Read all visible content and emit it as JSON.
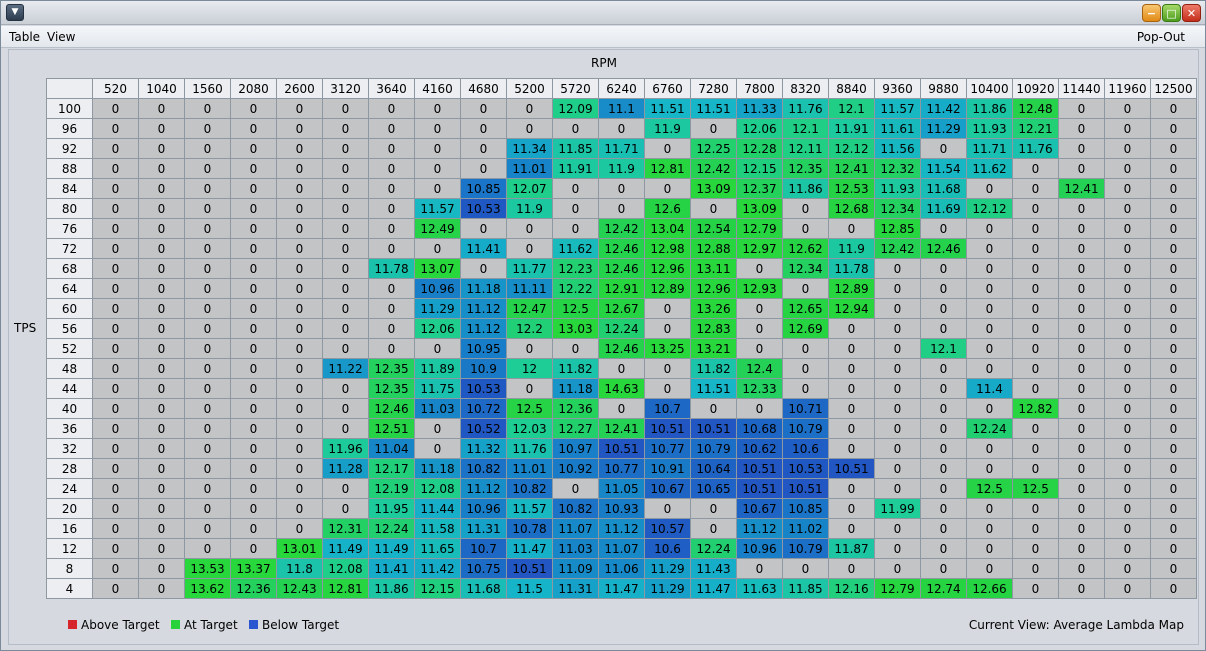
{
  "window": {
    "system_menu_icon": "chevron-down-icon"
  },
  "menu": {
    "items": [
      "Table",
      "View"
    ],
    "popout": "Pop-Out"
  },
  "table": {
    "x_axis_label": "RPM",
    "y_axis_label": "TPS",
    "rpm": [
      "520",
      "1040",
      "1560",
      "2080",
      "2600",
      "3120",
      "3640",
      "4160",
      "4680",
      "5200",
      "5720",
      "6240",
      "6760",
      "7280",
      "7800",
      "8320",
      "8840",
      "9360",
      "9880",
      "10400",
      "10920",
      "11440",
      "11960",
      "12500"
    ],
    "tps": [
      "100",
      "96",
      "92",
      "88",
      "84",
      "80",
      "76",
      "72",
      "68",
      "64",
      "60",
      "56",
      "52",
      "48",
      "44",
      "40",
      "36",
      "32",
      "28",
      "24",
      "20",
      "16",
      "12",
      "8",
      "4"
    ],
    "rows": [
      [
        "0",
        "0",
        "0",
        "0",
        "0",
        "0",
        "0",
        "0",
        "0",
        "0",
        "12.09",
        "11.1",
        "11.51",
        "11.51",
        "11.33",
        "11.76",
        "12.1",
        "11.57",
        "11.42",
        "11.86",
        "12.48",
        "0",
        "0",
        "0"
      ],
      [
        "0",
        "0",
        "0",
        "0",
        "0",
        "0",
        "0",
        "0",
        "0",
        "0",
        "0",
        "0",
        "11.9",
        "0",
        "12.06",
        "12.1",
        "11.91",
        "11.61",
        "11.29",
        "11.93",
        "12.21",
        "0",
        "0",
        "0"
      ],
      [
        "0",
        "0",
        "0",
        "0",
        "0",
        "0",
        "0",
        "0",
        "0",
        "11.34",
        "11.85",
        "11.71",
        "0",
        "12.25",
        "12.28",
        "12.11",
        "12.12",
        "11.56",
        "0",
        "11.71",
        "11.76",
        "0",
        "0",
        "0"
      ],
      [
        "0",
        "0",
        "0",
        "0",
        "0",
        "0",
        "0",
        "0",
        "0",
        "11.01",
        "11.91",
        "11.9",
        "12.81",
        "12.42",
        "12.15",
        "12.35",
        "12.41",
        "12.32",
        "11.54",
        "11.62",
        "0",
        "0",
        "0",
        "0"
      ],
      [
        "0",
        "0",
        "0",
        "0",
        "0",
        "0",
        "0",
        "0",
        "10.85",
        "12.07",
        "0",
        "0",
        "0",
        "13.09",
        "12.37",
        "11.86",
        "12.53",
        "11.93",
        "11.68",
        "0",
        "0",
        "12.41",
        "0",
        "0"
      ],
      [
        "0",
        "0",
        "0",
        "0",
        "0",
        "0",
        "0",
        "11.57",
        "10.53",
        "11.9",
        "0",
        "0",
        "12.6",
        "0",
        "13.09",
        "0",
        "12.68",
        "12.34",
        "11.69",
        "12.12",
        "0",
        "0",
        "0",
        "0"
      ],
      [
        "0",
        "0",
        "0",
        "0",
        "0",
        "0",
        "0",
        "12.49",
        "0",
        "0",
        "0",
        "12.42",
        "13.04",
        "12.54",
        "12.79",
        "0",
        "0",
        "12.85",
        "0",
        "0",
        "0",
        "0",
        "0",
        "0"
      ],
      [
        "0",
        "0",
        "0",
        "0",
        "0",
        "0",
        "0",
        "0",
        "11.41",
        "0",
        "11.62",
        "12.46",
        "12.98",
        "12.88",
        "12.97",
        "12.62",
        "11.9",
        "12.42",
        "12.46",
        "0",
        "0",
        "0",
        "0",
        "0"
      ],
      [
        "0",
        "0",
        "0",
        "0",
        "0",
        "0",
        "11.78",
        "13.07",
        "0",
        "11.77",
        "12.23",
        "12.46",
        "12.96",
        "13.11",
        "0",
        "12.34",
        "11.78",
        "0",
        "0",
        "0",
        "0",
        "0",
        "0",
        "0"
      ],
      [
        "0",
        "0",
        "0",
        "0",
        "0",
        "0",
        "0",
        "10.96",
        "11.18",
        "11.11",
        "12.22",
        "12.91",
        "12.89",
        "12.96",
        "12.93",
        "0",
        "12.89",
        "0",
        "0",
        "0",
        "0",
        "0",
        "0",
        "0"
      ],
      [
        "0",
        "0",
        "0",
        "0",
        "0",
        "0",
        "0",
        "11.29",
        "11.12",
        "12.47",
        "12.5",
        "12.67",
        "0",
        "13.26",
        "0",
        "12.65",
        "12.94",
        "0",
        "0",
        "0",
        "0",
        "0",
        "0",
        "0"
      ],
      [
        "0",
        "0",
        "0",
        "0",
        "0",
        "0",
        "0",
        "12.06",
        "11.12",
        "12.2",
        "13.03",
        "12.24",
        "0",
        "12.83",
        "0",
        "12.69",
        "0",
        "0",
        "0",
        "0",
        "0",
        "0",
        "0",
        "0"
      ],
      [
        "0",
        "0",
        "0",
        "0",
        "0",
        "0",
        "0",
        "0",
        "10.95",
        "0",
        "0",
        "12.46",
        "13.25",
        "13.21",
        "0",
        "0",
        "0",
        "0",
        "12.1",
        "0",
        "0",
        "0",
        "0",
        "0"
      ],
      [
        "0",
        "0",
        "0",
        "0",
        "0",
        "11.22",
        "12.35",
        "11.89",
        "10.9",
        "12",
        "11.82",
        "0",
        "0",
        "11.82",
        "12.4",
        "0",
        "0",
        "0",
        "0",
        "0",
        "0",
        "0",
        "0",
        "0"
      ],
      [
        "0",
        "0",
        "0",
        "0",
        "0",
        "0",
        "12.35",
        "11.75",
        "10.53",
        "0",
        "11.18",
        "14.63",
        "0",
        "11.51",
        "12.33",
        "0",
        "0",
        "0",
        "0",
        "11.4",
        "0",
        "0",
        "0",
        "0"
      ],
      [
        "0",
        "0",
        "0",
        "0",
        "0",
        "0",
        "12.46",
        "11.03",
        "10.72",
        "12.5",
        "12.36",
        "0",
        "10.7",
        "0",
        "0",
        "10.71",
        "0",
        "0",
        "0",
        "0",
        "12.82",
        "0",
        "0",
        "0"
      ],
      [
        "0",
        "0",
        "0",
        "0",
        "0",
        "0",
        "12.51",
        "0",
        "10.52",
        "12.03",
        "12.27",
        "12.41",
        "10.51",
        "10.51",
        "10.68",
        "10.79",
        "0",
        "0",
        "0",
        "12.24",
        "0",
        "0",
        "0",
        "0"
      ],
      [
        "0",
        "0",
        "0",
        "0",
        "0",
        "11.96",
        "11.04",
        "0",
        "11.32",
        "11.76",
        "10.97",
        "10.51",
        "10.77",
        "10.79",
        "10.62",
        "10.6",
        "0",
        "0",
        "0",
        "0",
        "0",
        "0",
        "0",
        "0"
      ],
      [
        "0",
        "0",
        "0",
        "0",
        "0",
        "11.28",
        "12.17",
        "11.18",
        "10.82",
        "11.01",
        "10.92",
        "10.77",
        "10.91",
        "10.64",
        "10.51",
        "10.53",
        "10.51",
        "0",
        "0",
        "0",
        "0",
        "0",
        "0",
        "0"
      ],
      [
        "0",
        "0",
        "0",
        "0",
        "0",
        "0",
        "12.19",
        "12.08",
        "11.12",
        "10.82",
        "0",
        "11.05",
        "10.67",
        "10.65",
        "10.51",
        "10.51",
        "0",
        "0",
        "0",
        "12.5",
        "12.5",
        "0",
        "0",
        "0"
      ],
      [
        "0",
        "0",
        "0",
        "0",
        "0",
        "0",
        "11.95",
        "11.44",
        "10.96",
        "11.57",
        "10.82",
        "10.93",
        "0",
        "0",
        "10.67",
        "10.85",
        "0",
        "11.99",
        "0",
        "0",
        "0",
        "0",
        "0",
        "0"
      ],
      [
        "0",
        "0",
        "0",
        "0",
        "0",
        "12.31",
        "12.24",
        "11.58",
        "11.31",
        "10.78",
        "11.07",
        "11.12",
        "10.57",
        "0",
        "11.12",
        "11.02",
        "0",
        "0",
        "0",
        "0",
        "0",
        "0",
        "0",
        "0"
      ],
      [
        "0",
        "0",
        "0",
        "0",
        "13.01",
        "11.49",
        "11.49",
        "11.65",
        "10.7",
        "11.47",
        "11.03",
        "11.07",
        "10.6",
        "12.24",
        "10.96",
        "10.79",
        "11.87",
        "0",
        "0",
        "0",
        "0",
        "0",
        "0",
        "0"
      ],
      [
        "0",
        "0",
        "13.53",
        "13.37",
        "11.8",
        "12.08",
        "11.41",
        "11.42",
        "10.75",
        "10.51",
        "11.09",
        "11.06",
        "11.29",
        "11.43",
        "0",
        "0",
        "0",
        "0",
        "0",
        "0",
        "0",
        "0",
        "0",
        "0"
      ],
      [
        "0",
        "0",
        "13.62",
        "12.36",
        "12.43",
        "12.81",
        "11.86",
        "12.15",
        "11.68",
        "11.5",
        "11.31",
        "11.47",
        "11.29",
        "11.47",
        "11.63",
        "11.85",
        "12.16",
        "12.79",
        "12.74",
        "12.66",
        "0",
        "0",
        "0",
        "0"
      ]
    ]
  },
  "legend": [
    {
      "label": "Above Target",
      "color": "#d7262b"
    },
    {
      "label": "At Target",
      "color": "#27d23b"
    },
    {
      "label": "Below Target",
      "color": "#2a55d0"
    }
  ],
  "status": {
    "current_view": "Current View: Average Lambda Map"
  },
  "colors": {
    "zero_cell": "#c3c4c5",
    "header_cell": "#eceef1"
  }
}
